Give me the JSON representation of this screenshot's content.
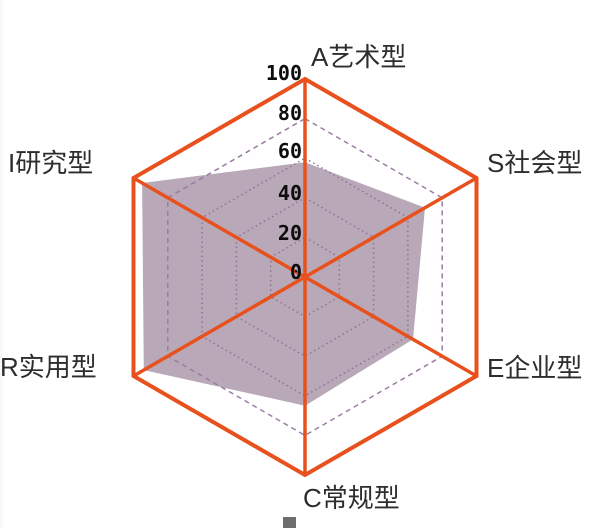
{
  "chart_data": {
    "type": "radar",
    "title": "",
    "axes": [
      {
        "id": "A",
        "label": "A艺术型",
        "value": 58
      },
      {
        "id": "S",
        "label": "S社会型",
        "value": 70
      },
      {
        "id": "E",
        "label": "E企业型",
        "value": 63
      },
      {
        "id": "C",
        "label": "C常规型",
        "value": 65
      },
      {
        "id": "R",
        "label": "R实用型",
        "value": 94
      },
      {
        "id": "I",
        "label": "I研究型",
        "value": 95
      }
    ],
    "rlim": [
      0,
      100
    ],
    "ticks": [
      0,
      20,
      40,
      60,
      80,
      100
    ],
    "tick_labels": [
      "0",
      "20",
      "40",
      "60",
      "80",
      "100"
    ],
    "grid_rings": [
      20,
      40,
      60,
      80
    ],
    "legend": "none",
    "colors": {
      "frame_and_spokes": "#E8501D",
      "series_fill": "#B9A9B8",
      "ring_dotted": "#8E7194",
      "ring_dashed": "#9B7BA2",
      "tick_text": "#0d0d0d",
      "label_text": "#2d2d2d"
    }
  },
  "page": {
    "background": "#ffffff"
  }
}
